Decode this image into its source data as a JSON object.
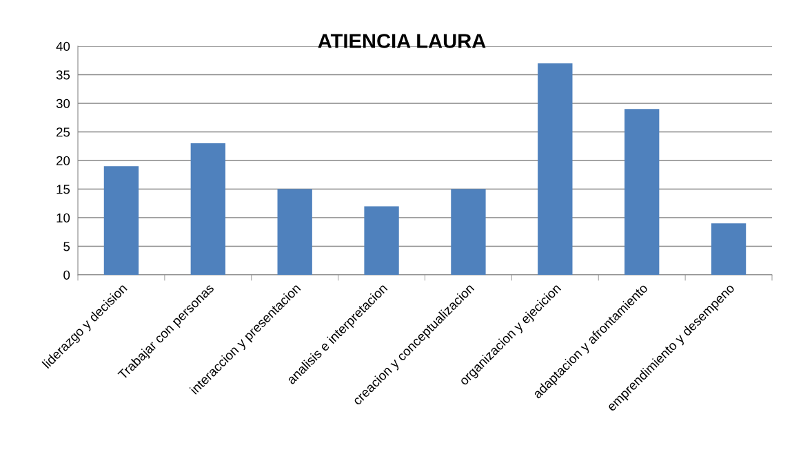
{
  "chart_data": {
    "type": "bar",
    "title": "ATIENCIA LAURA",
    "categories": [
      "liderazgo y decision",
      "Trabajar con personas",
      "interaccion y presentacion",
      "analisis e interpretacion",
      "creacion y conceptualizacion",
      "organizacion y ejecicion",
      "adaptacion y afrontamiento",
      "emprendimiento y desempeno"
    ],
    "values": [
      19,
      23,
      15,
      12,
      15,
      37,
      29,
      9
    ],
    "color": "#4f81bd",
    "ylim": [
      0,
      40
    ],
    "yticks": [
      0,
      5,
      10,
      15,
      20,
      25,
      30,
      35,
      40
    ],
    "grid": "y",
    "legend": false
  }
}
